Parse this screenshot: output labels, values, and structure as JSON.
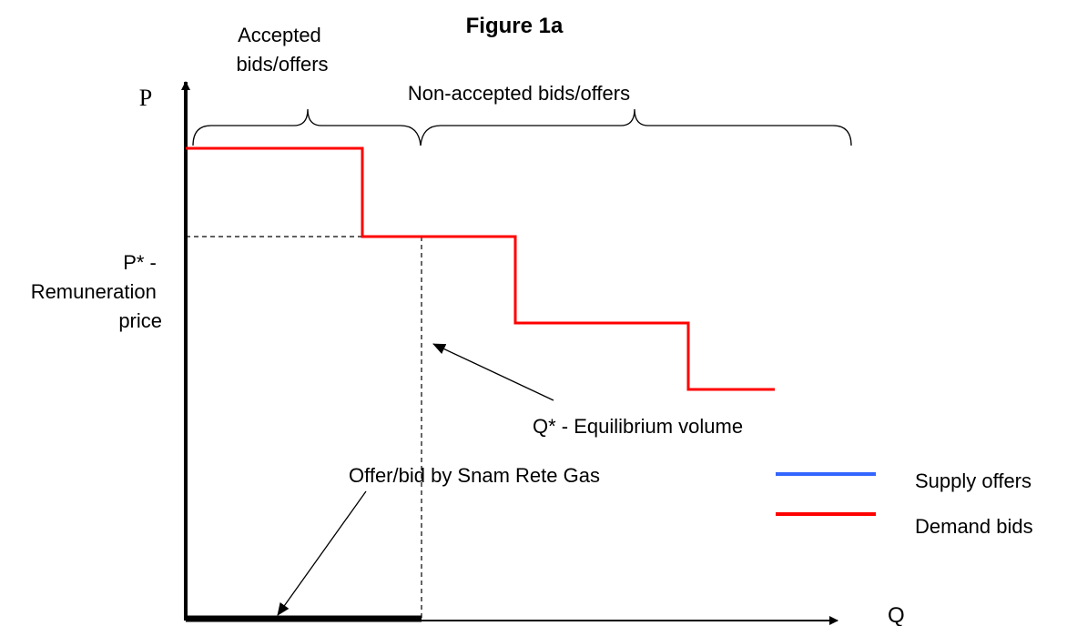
{
  "title": "Figure 1a",
  "axes": {
    "y_label": "P",
    "x_label": "Q"
  },
  "labels": {
    "accepted": [
      "Accepted",
      "bids/offers"
    ],
    "non_accepted": "Non-accepted bids/offers",
    "price": [
      "P* -",
      "Remuneration",
      "price"
    ],
    "volume": "Q* - Equilibrium volume",
    "snam": "Offer/bid by Snam Rete Gas"
  },
  "legend": [
    {
      "name": "Supply offers",
      "color": "#3366ff"
    },
    {
      "name": "Demand bids",
      "color": "#ff0000"
    }
  ]
}
